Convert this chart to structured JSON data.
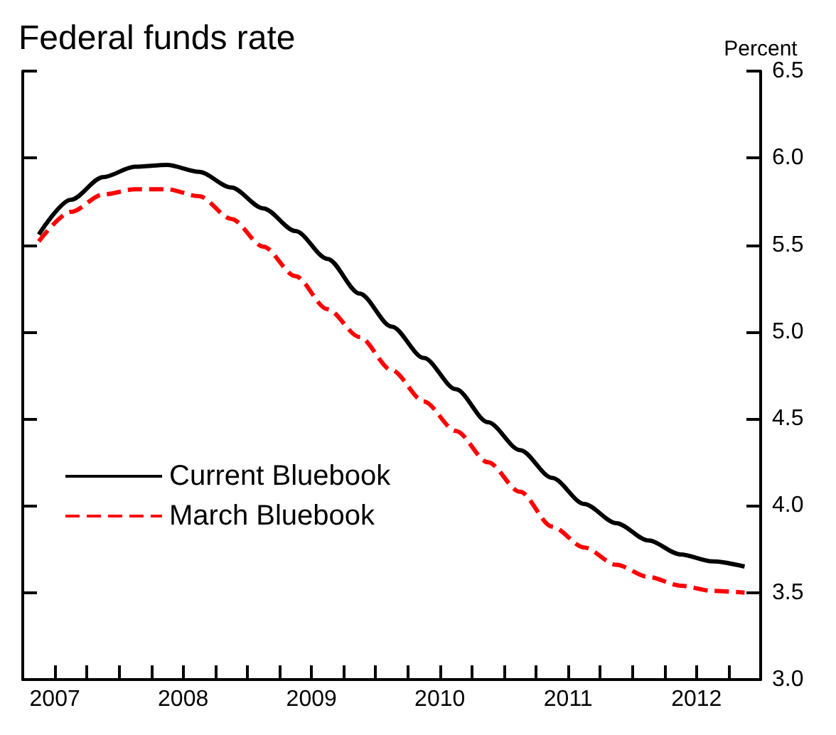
{
  "chart_data": {
    "type": "line",
    "title": "Federal funds rate",
    "ylabel": "Percent",
    "x": [
      2007.375,
      2007.625,
      2007.875,
      2008.125,
      2008.375,
      2008.625,
      2008.875,
      2009.125,
      2009.375,
      2009.625,
      2009.875,
      2010.125,
      2010.375,
      2010.625,
      2010.875,
      2011.125,
      2011.375,
      2011.625,
      2011.875,
      2012.125,
      2012.375,
      2012.625,
      2012.875
    ],
    "series": [
      {
        "name": "Current Bluebook",
        "color": "#000000",
        "line_style": "solid",
        "values": [
          5.56,
          5.76,
          5.89,
          5.95,
          5.96,
          5.92,
          5.83,
          5.71,
          5.58,
          5.42,
          5.22,
          5.03,
          4.85,
          4.67,
          4.48,
          4.32,
          4.16,
          4.01,
          3.9,
          3.8,
          3.72,
          3.68,
          3.65
        ]
      },
      {
        "name": "March Bluebook",
        "color": "#ff0000",
        "line_style": "dashed",
        "values": [
          5.52,
          5.69,
          5.79,
          5.82,
          5.82,
          5.78,
          5.65,
          5.49,
          5.32,
          5.13,
          4.97,
          4.78,
          4.6,
          4.43,
          4.25,
          4.08,
          3.88,
          3.76,
          3.66,
          3.59,
          3.54,
          3.51,
          3.5
        ]
      }
    ],
    "xlim": [
      2007.25,
      2013
    ],
    "xticks": [
      {
        "value": 2007.5,
        "label": "2007"
      },
      {
        "value": 2007.75,
        "label": null
      },
      {
        "value": 2008,
        "label": null
      },
      {
        "value": 2008.25,
        "label": null
      },
      {
        "value": 2008.5,
        "label": "2008"
      },
      {
        "value": 2008.75,
        "label": null
      },
      {
        "value": 2009,
        "label": null
      },
      {
        "value": 2009.25,
        "label": null
      },
      {
        "value": 2009.5,
        "label": "2009"
      },
      {
        "value": 2009.75,
        "label": null
      },
      {
        "value": 2010,
        "label": null
      },
      {
        "value": 2010.25,
        "label": null
      },
      {
        "value": 2010.5,
        "label": "2010"
      },
      {
        "value": 2010.75,
        "label": null
      },
      {
        "value": 2011,
        "label": null
      },
      {
        "value": 2011.25,
        "label": null
      },
      {
        "value": 2011.5,
        "label": "2011"
      },
      {
        "value": 2011.75,
        "label": null
      },
      {
        "value": 2012,
        "label": null
      },
      {
        "value": 2012.25,
        "label": null
      },
      {
        "value": 2012.5,
        "label": "2012"
      },
      {
        "value": 2012.75,
        "label": null
      }
    ],
    "ylim": [
      3.0,
      6.5
    ],
    "yticks": [
      {
        "value": 3.0,
        "label": "3.0"
      },
      {
        "value": 3.5,
        "label": "3.5"
      },
      {
        "value": 4.0,
        "label": "4.0"
      },
      {
        "value": 4.5,
        "label": "4.5"
      },
      {
        "value": 5.0,
        "label": "5.0"
      },
      {
        "value": 5.5,
        "label": "5.5"
      },
      {
        "value": 6.0,
        "label": "6.0"
      },
      {
        "value": 6.5,
        "label": "6.5"
      }
    ],
    "grid": false,
    "legend": "bottom left",
    "marker": "none"
  }
}
